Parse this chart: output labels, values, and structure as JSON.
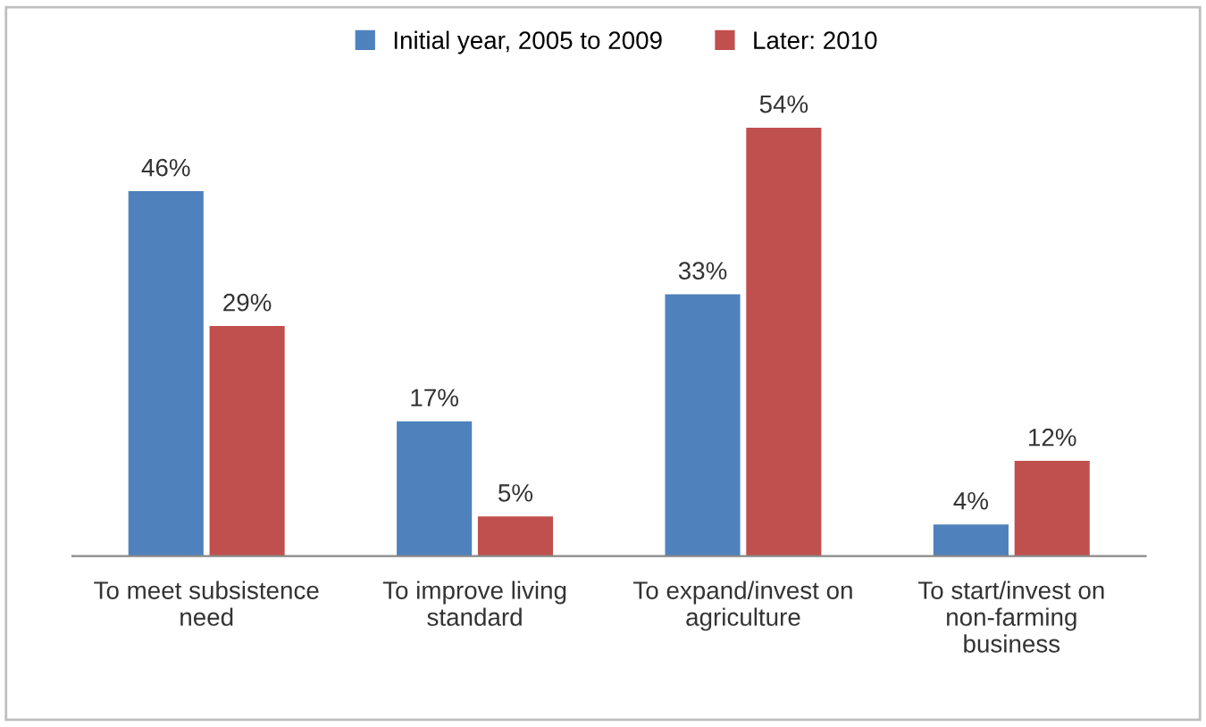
{
  "chart_data": {
    "type": "bar",
    "categories": [
      "To meet subsistence\nneed",
      "To improve living\nstandard",
      "To expand/invest on\nagriculture",
      "To start/invest on\nnon-farming\nbusiness"
    ],
    "series": [
      {
        "name": "Initial year, 2005 to 2009",
        "color": "#4f81bd",
        "values": [
          46,
          17,
          33,
          4
        ],
        "value_labels": [
          "46%",
          "17%",
          "33%",
          "4%"
        ]
      },
      {
        "name": "Later: 2010",
        "color": "#c0504d",
        "values": [
          29,
          5,
          54,
          12
        ],
        "value_labels": [
          "29%",
          "5%",
          "54%",
          "12%"
        ]
      }
    ],
    "legend": "top",
    "grid": false
  }
}
